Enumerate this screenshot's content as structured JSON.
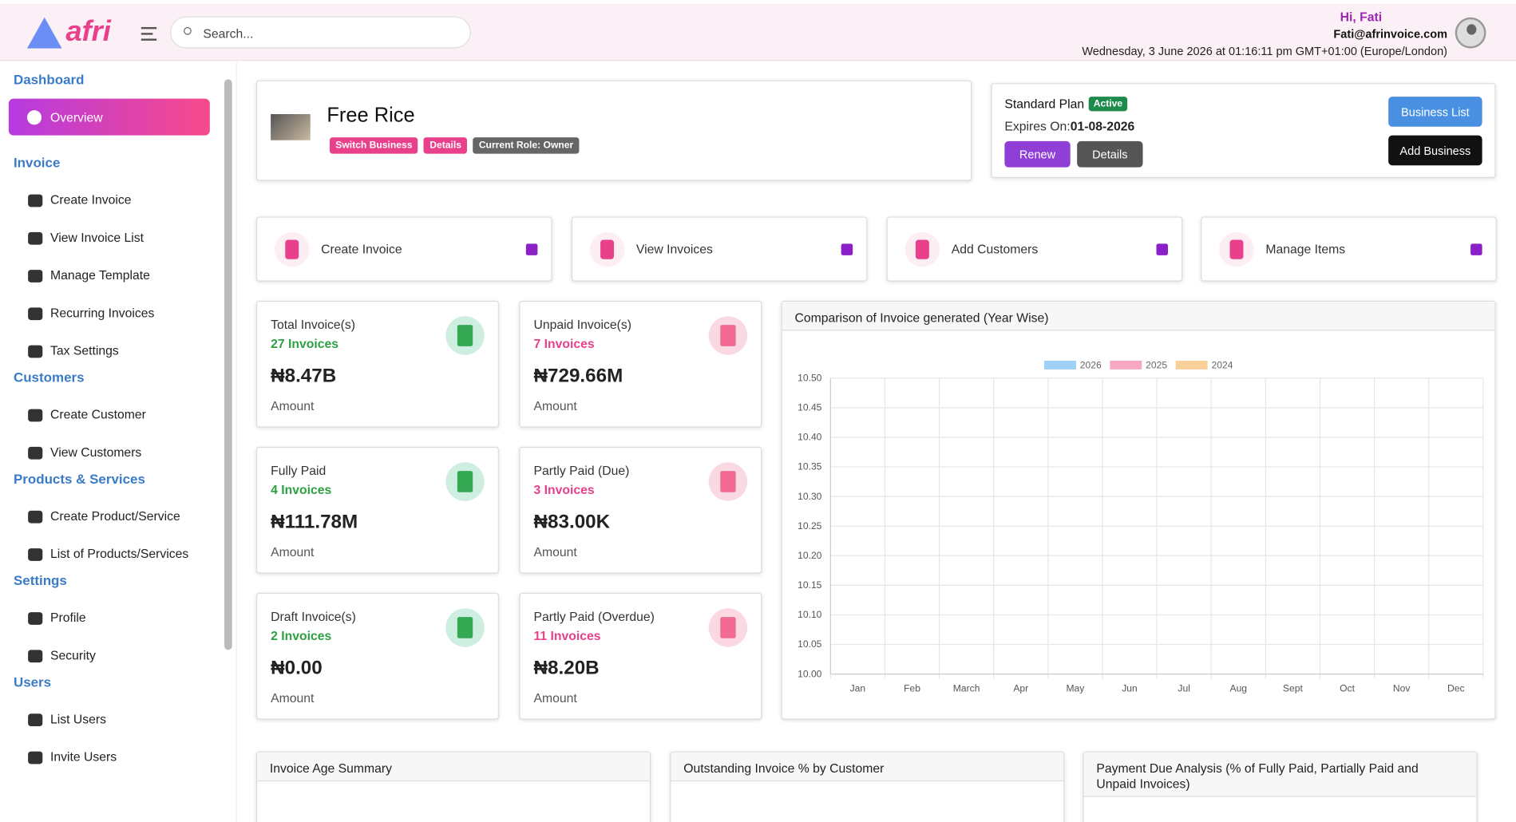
{
  "header": {
    "logo": "afri",
    "search_placeholder": "Search...",
    "greeting": "Hi, Fati",
    "email": "Fati@afrinvoice.com",
    "datetime": "Wednesday, 3 June 2026 at 01:16:11 pm GMT+01:00 (Europe/London)"
  },
  "sidebar": {
    "sections": [
      {
        "title": "Dashboard",
        "items": [
          "Overview"
        ]
      },
      {
        "title": "Invoice",
        "items": [
          "Create Invoice",
          "View Invoice List",
          "Manage Template",
          "Recurring Invoices",
          "Tax Settings"
        ]
      },
      {
        "title": "Customers",
        "items": [
          "Create Customer",
          "View Customers"
        ]
      },
      {
        "title": "Products & Services",
        "items": [
          "Create Product/Service",
          "List of Products/Services"
        ]
      },
      {
        "title": "Settings",
        "items": [
          "Profile",
          "Security"
        ]
      },
      {
        "title": "Users",
        "items": [
          "List Users",
          "Invite Users"
        ]
      }
    ]
  },
  "business": {
    "name": "Free Rice",
    "badges": [
      "Switch Business",
      "Details",
      "Current Role: Owner"
    ]
  },
  "plan": {
    "name": "Standard Plan",
    "status": "Active",
    "expires_label": "Expires On:",
    "expires": "01-08-2026",
    "buttons": [
      "Renew",
      "Details"
    ],
    "actions": [
      "Business List",
      "Add Business"
    ]
  },
  "quick_actions": [
    "Create Invoice",
    "View Invoices",
    "Add Customers",
    "Manage Items"
  ],
  "stats": [
    {
      "title": "Total Invoice(s)",
      "count": "27 Invoices",
      "amount": "₦8.47B",
      "label": "Amount"
    },
    {
      "title": "Unpaid Invoice(s)",
      "count": "7 Invoices",
      "amount": "₦729.66M",
      "label": "Amount"
    },
    {
      "title": "Fully Paid",
      "count": "4 Invoices",
      "amount": "₦111.78M",
      "label": "Amount"
    },
    {
      "title": "Partly Paid (Due)",
      "count": "3 Invoices",
      "amount": "₦83.00K",
      "label": "Amount"
    },
    {
      "title": "Draft Invoice(s)",
      "count": "2 Invoices",
      "amount": "₦0.00",
      "label": "Amount"
    },
    {
      "title": "Partly Paid (Overdue)",
      "count": "11 Invoices",
      "amount": "₦8.20B",
      "label": "Amount"
    }
  ],
  "chart": {
    "title": "Comparison of Invoice generated (Year Wise)",
    "legend": [
      {
        "name": "2026",
        "color": "#9fd0f5"
      },
      {
        "name": "2025",
        "color": "#f7a8c0"
      },
      {
        "name": "2024",
        "color": "#f9cf9a"
      }
    ],
    "yticks": [
      "10.50",
      "10.45",
      "10.40",
      "10.35",
      "10.30",
      "10.25",
      "10.20",
      "10.15",
      "10.10",
      "10.05",
      "10.00"
    ],
    "months": [
      "Jan",
      "Feb",
      "March",
      "Apr",
      "May",
      "Jun",
      "Jul",
      "Aug",
      "Sept",
      "Oct",
      "Nov",
      "Dec"
    ]
  },
  "panels": [
    "Invoice Age Summary",
    "Outstanding Invoice % by Customer",
    "Payment Due Analysis (% of Fully Paid, Partially Paid and Unpaid Invoices)"
  ]
}
